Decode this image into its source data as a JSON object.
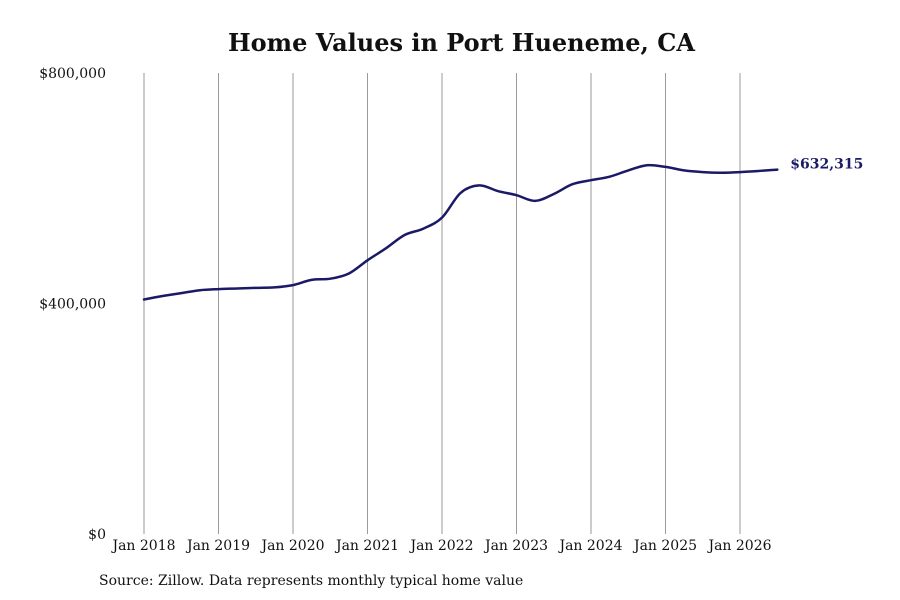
{
  "chart_data": {
    "type": "line",
    "title": "Home Values in Port Hueneme, CA",
    "xlabel": "",
    "ylabel": "",
    "x_ticks": [
      "Jan 2018",
      "Jan 2019",
      "Jan 2020",
      "Jan 2021",
      "Jan 2022",
      "Jan 2023",
      "Jan 2024",
      "Jan 2025",
      "Jan 2026"
    ],
    "y_ticks": [
      "$0",
      "$400,000",
      "$800,000"
    ],
    "ylim": [
      0,
      800000
    ],
    "xlim": [
      "2018-01",
      "2026-07"
    ],
    "grid": "vertical",
    "line_color": "#1a1a66",
    "end_label": "$632,315",
    "series": [
      {
        "x": [
          "2018-01",
          "2018-04",
          "2018-07",
          "2018-10",
          "2019-01",
          "2019-04",
          "2019-07",
          "2019-10",
          "2020-01",
          "2020-04",
          "2020-07",
          "2020-10",
          "2021-01",
          "2021-04",
          "2021-07",
          "2021-10",
          "2022-01",
          "2022-04",
          "2022-07",
          "2022-10",
          "2023-01",
          "2023-04",
          "2023-07",
          "2023-10",
          "2024-01",
          "2024-04",
          "2024-07",
          "2024-10",
          "2025-01",
          "2025-04",
          "2025-07",
          "2025-10",
          "2026-01",
          "2026-04",
          "2026-07"
        ],
        "values": [
          407000,
          413000,
          418000,
          423000,
          425000,
          426000,
          427000,
          428000,
          432000,
          441000,
          443000,
          452000,
          475000,
          496000,
          519000,
          530000,
          549000,
          592000,
          605000,
          595000,
          588000,
          578000,
          590000,
          607000,
          614000,
          620000,
          631000,
          640000,
          637000,
          631000,
          628000,
          627000,
          628000,
          630000,
          632315
        ]
      }
    ]
  },
  "source": "Source: Zillow. Data represents monthly typical home value"
}
